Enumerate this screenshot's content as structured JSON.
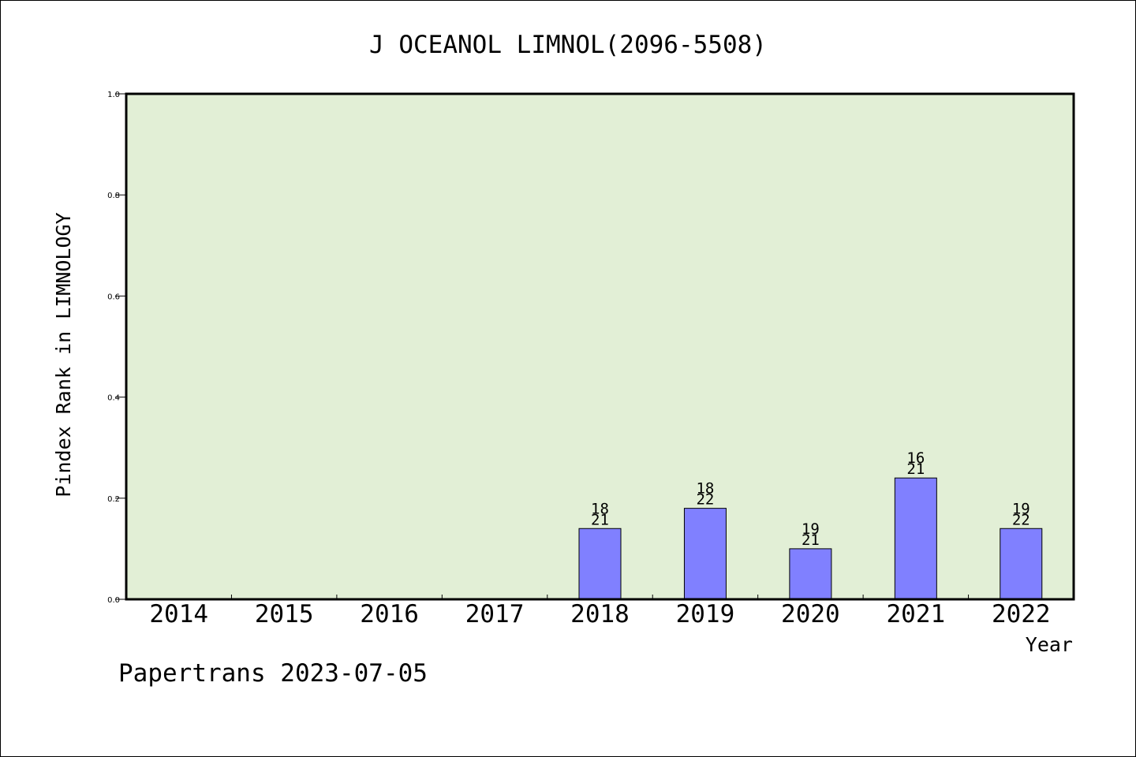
{
  "chart_data": {
    "type": "bar",
    "title": "J OCEANOL LIMNOL(2096-5508)",
    "xlabel": "Year",
    "ylabel": "Pindex Rank in LIMNOLOGY",
    "ylim": [
      0,
      1.0
    ],
    "yticks": [
      "0.0",
      "0.2",
      "0.4",
      "0.6",
      "0.8",
      "1.0"
    ],
    "categories": [
      "2014",
      "2015",
      "2016",
      "2017",
      "2018",
      "2019",
      "2020",
      "2021",
      "2022"
    ],
    "values": [
      null,
      null,
      null,
      null,
      0.14,
      0.18,
      0.1,
      0.24,
      0.14
    ],
    "bar_labels_top": [
      "",
      "",
      "",
      "",
      "18",
      "18",
      "19",
      "16",
      "19"
    ],
    "bar_labels_bottom": [
      "",
      "",
      "",
      "",
      "21",
      "22",
      "21",
      "21",
      "22"
    ],
    "grid": false,
    "colors": {
      "plot_background": "#e2efd6",
      "bar_fill": "#8080ff",
      "axis": "#000000"
    }
  },
  "footer": {
    "credit": "Papertrans 2023-07-05"
  }
}
